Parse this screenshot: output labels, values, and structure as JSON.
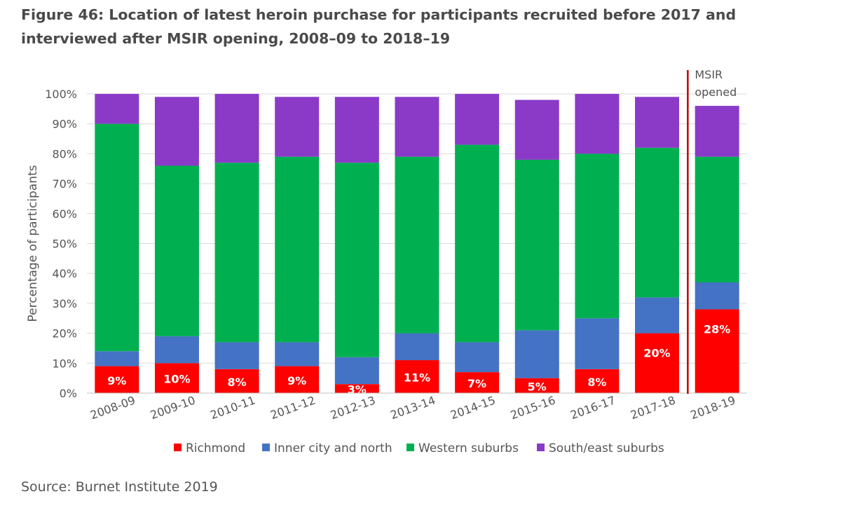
{
  "title": "Figure 46: Location of latest heroin purchase for participants recruited before 2017 and interviewed after MSIR opening, 2008–09 to 2018–19",
  "source": "Source: Burnet Institute 2019",
  "chart_data": {
    "type": "bar",
    "stacked": true,
    "categories": [
      "2008-09",
      "2009-10",
      "2010-11",
      "2011-12",
      "2012-13",
      "2013-14",
      "2014-15",
      "2015-16",
      "2016-17",
      "2017-18",
      "2018-19"
    ],
    "ylabel": "Percentage of participants",
    "ylim": [
      0,
      100
    ],
    "yticks": [
      "0%",
      "10%",
      "20%",
      "30%",
      "40%",
      "50%",
      "60%",
      "70%",
      "80%",
      "90%",
      "100%"
    ],
    "grid": true,
    "legend": "bottom",
    "series": [
      {
        "name": "Richmond",
        "color": "#ff0000",
        "values": [
          9,
          10,
          8,
          9,
          3,
          11,
          7,
          5,
          8,
          20,
          28
        ]
      },
      {
        "name": "Inner city and north",
        "color": "#4472c4",
        "values": [
          5,
          9,
          9,
          8,
          9,
          9,
          10,
          16,
          17,
          12,
          9
        ]
      },
      {
        "name": "Western suburbs",
        "color": "#00b050",
        "values": [
          76,
          57,
          60,
          62,
          65,
          59,
          66,
          57,
          55,
          50,
          42
        ]
      },
      {
        "name": "South/east suburbs",
        "color": "#8b3ac8",
        "values": [
          10,
          23,
          23,
          20,
          22,
          20,
          17,
          20,
          20,
          17,
          17
        ]
      }
    ],
    "data_labels": [
      "9%",
      "10%",
      "8%",
      "9%",
      "3%",
      "11%",
      "7%",
      "5%",
      "8%",
      "20%",
      "28%"
    ],
    "annotation": {
      "text_lines": [
        "MSIR",
        "opened"
      ],
      "between": [
        "2017-18",
        "2018-19"
      ],
      "line_color": "#c00000"
    }
  }
}
